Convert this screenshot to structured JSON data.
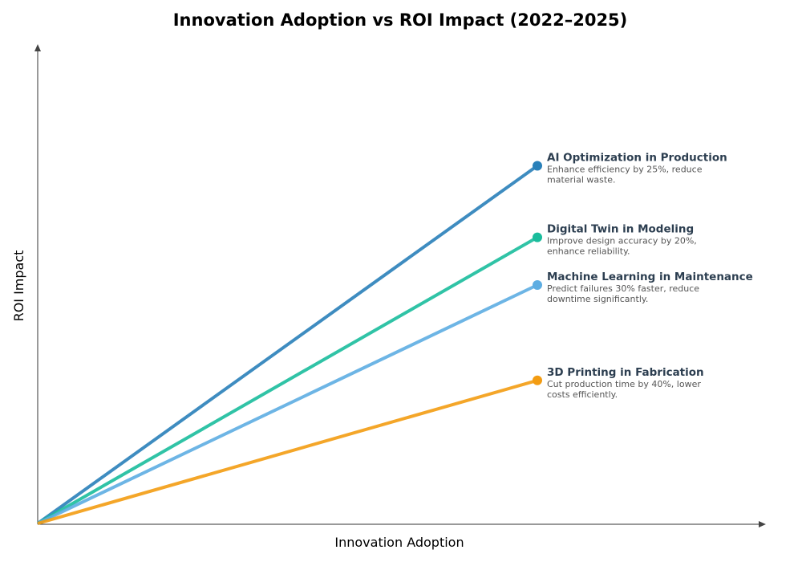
{
  "chart_data": {
    "type": "line",
    "title": "Innovation Adoption vs ROI Impact (2022–2025)",
    "xlabel": "Innovation Adoption",
    "ylabel": "ROI Impact",
    "xlim": [
      0,
      1
    ],
    "ylim": [
      0,
      1
    ],
    "grid": false,
    "ticks": false,
    "series": [
      {
        "name": "AI Optimization in Production",
        "description": [
          "Enhance efficiency by 25%, reduce",
          "material waste."
        ],
        "x": [
          0,
          0.7
        ],
        "y": [
          0,
          0.75
        ],
        "color": "#2980b9"
      },
      {
        "name": "Digital Twin in Modeling",
        "description": [
          "Improve design accuracy by 20%,",
          "enhance reliability."
        ],
        "x": [
          0,
          0.7
        ],
        "y": [
          0,
          0.6
        ],
        "color": "#1abc9c"
      },
      {
        "name": "Machine Learning in Maintenance",
        "description": [
          "Predict failures 30% faster, reduce",
          "downtime significantly."
        ],
        "x": [
          0,
          0.7
        ],
        "y": [
          0,
          0.5
        ],
        "color": "#5dade2"
      },
      {
        "name": "3D Printing in Fabrication",
        "description": [
          "Cut production time by 40%, lower",
          "costs efficiently."
        ],
        "x": [
          0,
          0.7
        ],
        "y": [
          0,
          0.3
        ],
        "color": "#f39c12"
      }
    ]
  }
}
